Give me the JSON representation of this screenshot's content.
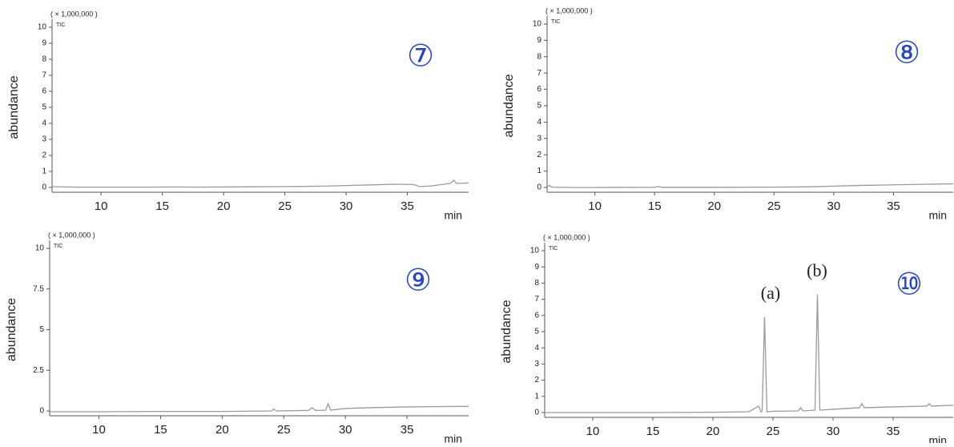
{
  "chart_data": [
    {
      "type": "line",
      "y_label": "abundance",
      "x_label": "min",
      "multiplier": "( × 1,000,000 )",
      "panel_label": "⑦",
      "x": [
        6,
        8,
        10,
        12,
        14,
        16,
        18,
        20,
        22,
        24,
        26,
        28,
        30,
        32,
        34,
        35.5,
        36,
        37,
        38,
        38.5,
        38.8,
        39,
        40
      ],
      "series": [
        {
          "name": "TIC",
          "color": "#9a9a9a",
          "values": [
            0.05,
            0.02,
            0.02,
            0.02,
            0.02,
            0.03,
            0.02,
            0.03,
            0.04,
            0.05,
            0.06,
            0.08,
            0.12,
            0.16,
            0.2,
            0.18,
            0.05,
            0.1,
            0.2,
            0.25,
            0.45,
            0.25,
            0.28
          ]
        }
      ],
      "xlim": [
        6,
        40
      ],
      "ylim": [
        0,
        10
      ],
      "xticks": [
        10,
        15,
        20,
        25,
        30,
        35
      ],
      "yticks": [
        0,
        1,
        2,
        3,
        4,
        5,
        6,
        7,
        8,
        9,
        10
      ]
    },
    {
      "type": "line",
      "y_label": "abundance",
      "x_label": "min",
      "multiplier": "( × 1,000,000 )",
      "panel_label": "⑧",
      "x": [
        6,
        6.2,
        6.4,
        8,
        10,
        15,
        15.3,
        15.6,
        20,
        25,
        28,
        30,
        32,
        35,
        38,
        40
      ],
      "series": [
        {
          "name": "TIC",
          "color": "#9a9a9a",
          "values": [
            0.05,
            0.12,
            0.02,
            0,
            0,
            0.01,
            0.06,
            0.01,
            0.01,
            0.02,
            0.04,
            0.08,
            0.12,
            0.16,
            0.2,
            0.22
          ]
        }
      ],
      "xlim": [
        6,
        40
      ],
      "ylim": [
        0,
        10
      ],
      "xticks": [
        10,
        15,
        20,
        25,
        30,
        35
      ],
      "yticks": [
        0,
        1,
        2,
        3,
        4,
        5,
        6,
        7,
        8,
        9,
        10
      ]
    },
    {
      "type": "line",
      "y_label": "abundance",
      "x_label": "min",
      "multiplier": "( × 1,000,000 )",
      "panel_label": "⑨",
      "x": [
        6,
        10,
        15,
        20,
        24,
        24.2,
        24.4,
        27,
        27.3,
        27.6,
        28.4,
        28.6,
        28.8,
        30,
        32,
        35,
        38,
        40
      ],
      "series": [
        {
          "name": "TIC",
          "color": "#9a9a9a",
          "values": [
            -0.05,
            -0.05,
            -0.03,
            -0.03,
            0,
            0.12,
            0,
            0.03,
            0.2,
            0.03,
            0.05,
            0.45,
            0.05,
            0.15,
            0.2,
            0.25,
            0.27,
            0.28
          ]
        }
      ],
      "xlim": [
        6,
        40
      ],
      "ylim": [
        0,
        10
      ],
      "xticks": [
        10,
        15,
        20,
        25,
        30,
        35
      ],
      "yticks": [
        0,
        2.5,
        5,
        7.5,
        10
      ]
    },
    {
      "type": "line",
      "y_label": "abundance",
      "x_label": "min",
      "multiplier": "( × 1,000,000 )",
      "panel_label": "⑩",
      "x": [
        6,
        10,
        15,
        20,
        23,
        23.8,
        24,
        24.1,
        24.3,
        24.5,
        25,
        27.1,
        27.3,
        27.5,
        28.5,
        28.7,
        28.9,
        30,
        32.2,
        32.4,
        32.6,
        35,
        37.8,
        38,
        38.2,
        40
      ],
      "series": [
        {
          "name": "TIC",
          "color": "#9a9a9a",
          "values": [
            0,
            0,
            0,
            0.02,
            0.05,
            0.4,
            0.05,
            0.1,
            5.9,
            0.05,
            0.08,
            0.1,
            0.3,
            0.1,
            0.15,
            7.3,
            0.15,
            0.2,
            0.3,
            0.55,
            0.3,
            0.35,
            0.4,
            0.55,
            0.4,
            0.45
          ]
        }
      ],
      "xlim": [
        6,
        40
      ],
      "ylim": [
        0,
        10
      ],
      "xticks": [
        10,
        15,
        20,
        25,
        30,
        35
      ],
      "yticks": [
        0,
        1,
        2,
        3,
        4,
        5,
        6,
        7,
        8,
        9,
        10
      ],
      "annotations": [
        "(a)",
        "(b)"
      ]
    }
  ]
}
